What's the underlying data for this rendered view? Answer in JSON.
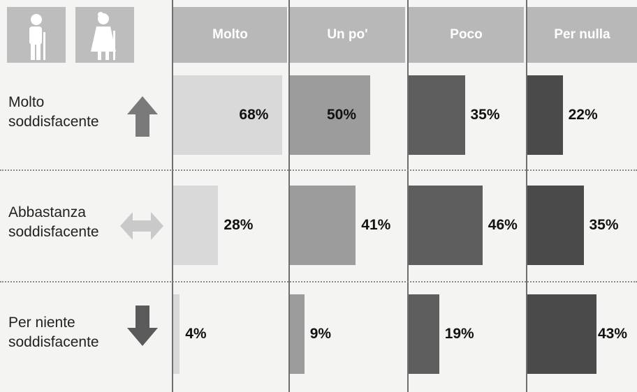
{
  "chart_data": {
    "type": "bar",
    "series": [
      {
        "name": "Molto",
        "values": [
          68,
          28,
          4
        ]
      },
      {
        "name": "Un po'",
        "values": [
          50,
          41,
          9
        ]
      },
      {
        "name": "Poco",
        "values": [
          35,
          46,
          19
        ]
      },
      {
        "name": "Per nulla",
        "values": [
          22,
          35,
          43
        ]
      }
    ],
    "row_labels": [
      {
        "line1": "Molto",
        "line2": "soddisfacente",
        "arrow": "up-arrow-icon"
      },
      {
        "line1": "Abbastanza",
        "line2": "soddisfacente",
        "arrow": "left-right-arrow-icon"
      },
      {
        "line1": "Per niente",
        "line2": "soddisfacente",
        "arrow": "down-arrow-icon"
      }
    ],
    "value_suffix": "%",
    "header_icons": [
      "elderly-man-with-cane-icon",
      "elderly-woman-with-cane-icon"
    ],
    "colors": {
      "Molto": "#d9d9d9",
      "Un po'": "#9c9c9c",
      "Poco": "#5e5e5e",
      "Per nulla": "#4a4a4a",
      "header": "#b8b8b8",
      "header_text": "#ffffff"
    },
    "grid": false,
    "legend": "top"
  }
}
